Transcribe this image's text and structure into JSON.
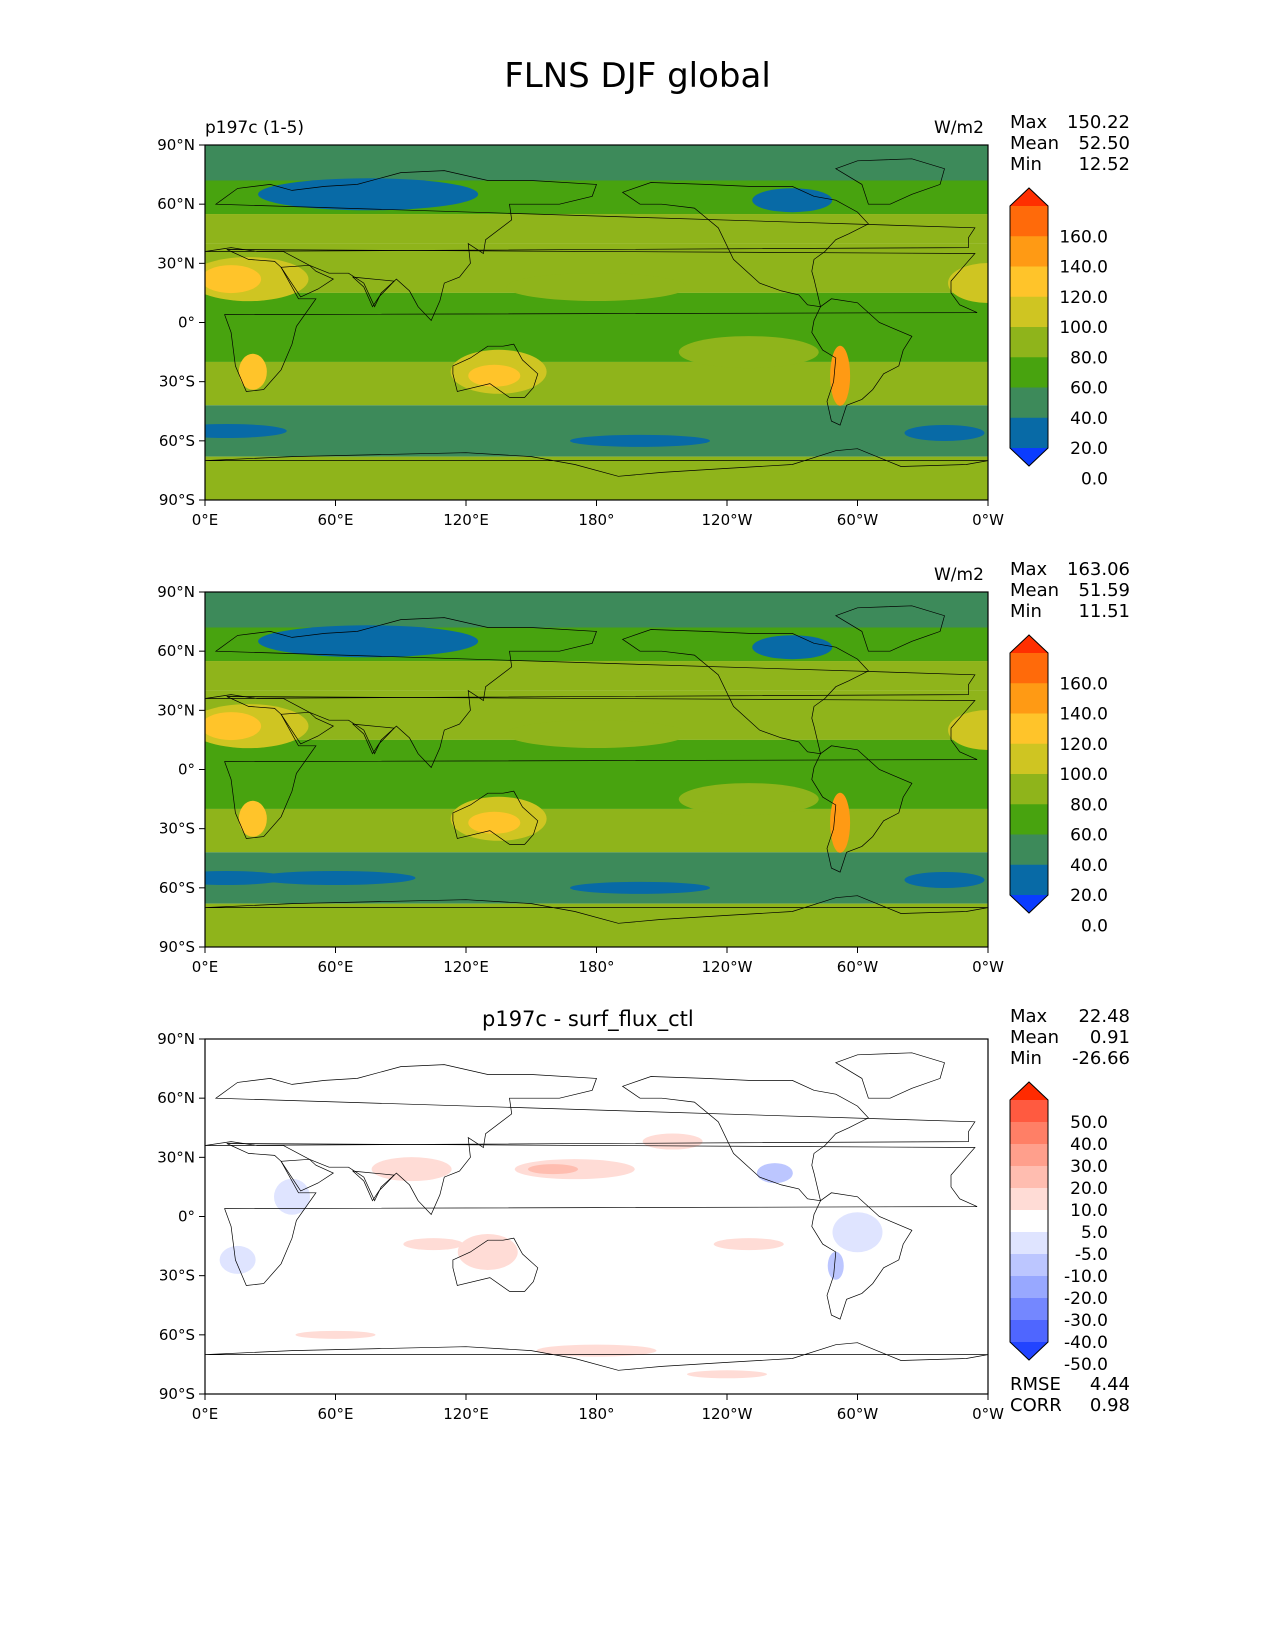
{
  "title": "FLNS DJF global",
  "lat_ticks": [
    "90°N",
    "60°N",
    "30°N",
    "0°",
    "30°S",
    "60°S",
    "90°S"
  ],
  "lon_ticks": [
    "0°E",
    "60°E",
    "120°E",
    "180°",
    "120°W",
    "60°W",
    "0°W"
  ],
  "panels": [
    {
      "id": "test",
      "left_title": "p197c (1-5)",
      "center_title": "",
      "units": "W/m2",
      "stats": {
        "max": "150.22",
        "mean": "52.50",
        "min": "12.52"
      },
      "stat_labels": {
        "max": "Max",
        "mean": "Mean",
        "min": "Min"
      },
      "colorbar": {
        "labels": [
          "160.0",
          "140.0",
          "120.0",
          "100.0",
          "80.0",
          "60.0",
          "40.0",
          "20.0",
          "0.0"
        ],
        "colors": [
          "#ff2f00",
          "#ff6a0a",
          "#ff9a14",
          "#ffc42a",
          "#cfc522",
          "#8fb41b",
          "#48a30f",
          "#3d8a5a",
          "#086aa6",
          "#0a3cff"
        ]
      }
    },
    {
      "id": "reference",
      "left_title": "",
      "center_title": "",
      "units": "W/m2",
      "stats": {
        "max": "163.06",
        "mean": "51.59",
        "min": "11.51"
      },
      "stat_labels": {
        "max": "Max",
        "mean": "Mean",
        "min": "Min"
      },
      "colorbar": {
        "labels": [
          "160.0",
          "140.0",
          "120.0",
          "100.0",
          "80.0",
          "60.0",
          "40.0",
          "20.0",
          "0.0"
        ],
        "colors": [
          "#ff2f00",
          "#ff6a0a",
          "#ff9a14",
          "#ffc42a",
          "#cfc522",
          "#8fb41b",
          "#48a30f",
          "#3d8a5a",
          "#086aa6",
          "#0a3cff"
        ]
      }
    },
    {
      "id": "difference",
      "left_title": "",
      "center_title": "p197c - surf_flux_ctl",
      "units": "",
      "stats": {
        "max": "22.48",
        "mean": "0.91",
        "min": "-26.66"
      },
      "stat_labels": {
        "max": "Max",
        "mean": "Mean",
        "min": "Min"
      },
      "metrics": {
        "rmse_label": "RMSE",
        "rmse": "4.44",
        "corr_label": "CORR",
        "corr": "0.98"
      },
      "colorbar": {
        "labels": [
          "50.0",
          "40.0",
          "30.0",
          "20.0",
          "10.0",
          "5.0",
          "-5.0",
          "-10.0",
          "-20.0",
          "-30.0",
          "-40.0",
          "-50.0"
        ],
        "colors": [
          "#ff2a00",
          "#ff5a40",
          "#ff7f66",
          "#ff9f8c",
          "#ffbdb0",
          "#ffdcd6",
          "#ffffff",
          "#dfe4ff",
          "#bcc6ff",
          "#98a8ff",
          "#7487ff",
          "#4f66ff",
          "#2244ff"
        ]
      }
    }
  ],
  "chart_data": [
    {
      "type": "heatmap",
      "title": "FLNS DJF global",
      "subtitle": "p197c (1-5)",
      "units": "W/m2",
      "xlabel": "",
      "ylabel": "",
      "x_ticks": [
        "0°E",
        "60°E",
        "120°E",
        "180°",
        "120°W",
        "60°W",
        "0°W"
      ],
      "y_ticks": [
        "90°N",
        "60°N",
        "30°N",
        "0°",
        "30°S",
        "60°S",
        "90°S"
      ],
      "levels": [
        0,
        20,
        40,
        60,
        80,
        100,
        120,
        140,
        160
      ],
      "max": 150.22,
      "mean": 52.5,
      "min": 12.52
    },
    {
      "type": "heatmap",
      "units": "W/m2",
      "x_ticks": [
        "0°E",
        "60°E",
        "120°E",
        "180°",
        "120°W",
        "60°W",
        "0°W"
      ],
      "y_ticks": [
        "90°N",
        "60°N",
        "30°N",
        "0°",
        "30°S",
        "60°S",
        "90°S"
      ],
      "levels": [
        0,
        20,
        40,
        60,
        80,
        100,
        120,
        140,
        160
      ],
      "max": 163.06,
      "mean": 51.59,
      "min": 11.51
    },
    {
      "type": "heatmap",
      "title": "p197c - surf_flux_ctl",
      "x_ticks": [
        "0°E",
        "60°E",
        "120°E",
        "180°",
        "120°W",
        "60°W",
        "0°W"
      ],
      "y_ticks": [
        "90°N",
        "60°N",
        "30°N",
        "0°",
        "30°S",
        "60°S",
        "90°S"
      ],
      "levels": [
        -50,
        -40,
        -30,
        -20,
        -10,
        -5,
        5,
        10,
        20,
        30,
        40,
        50
      ],
      "max": 22.48,
      "mean": 0.91,
      "min": -26.66,
      "rmse": 4.44,
      "corr": 0.98
    }
  ]
}
